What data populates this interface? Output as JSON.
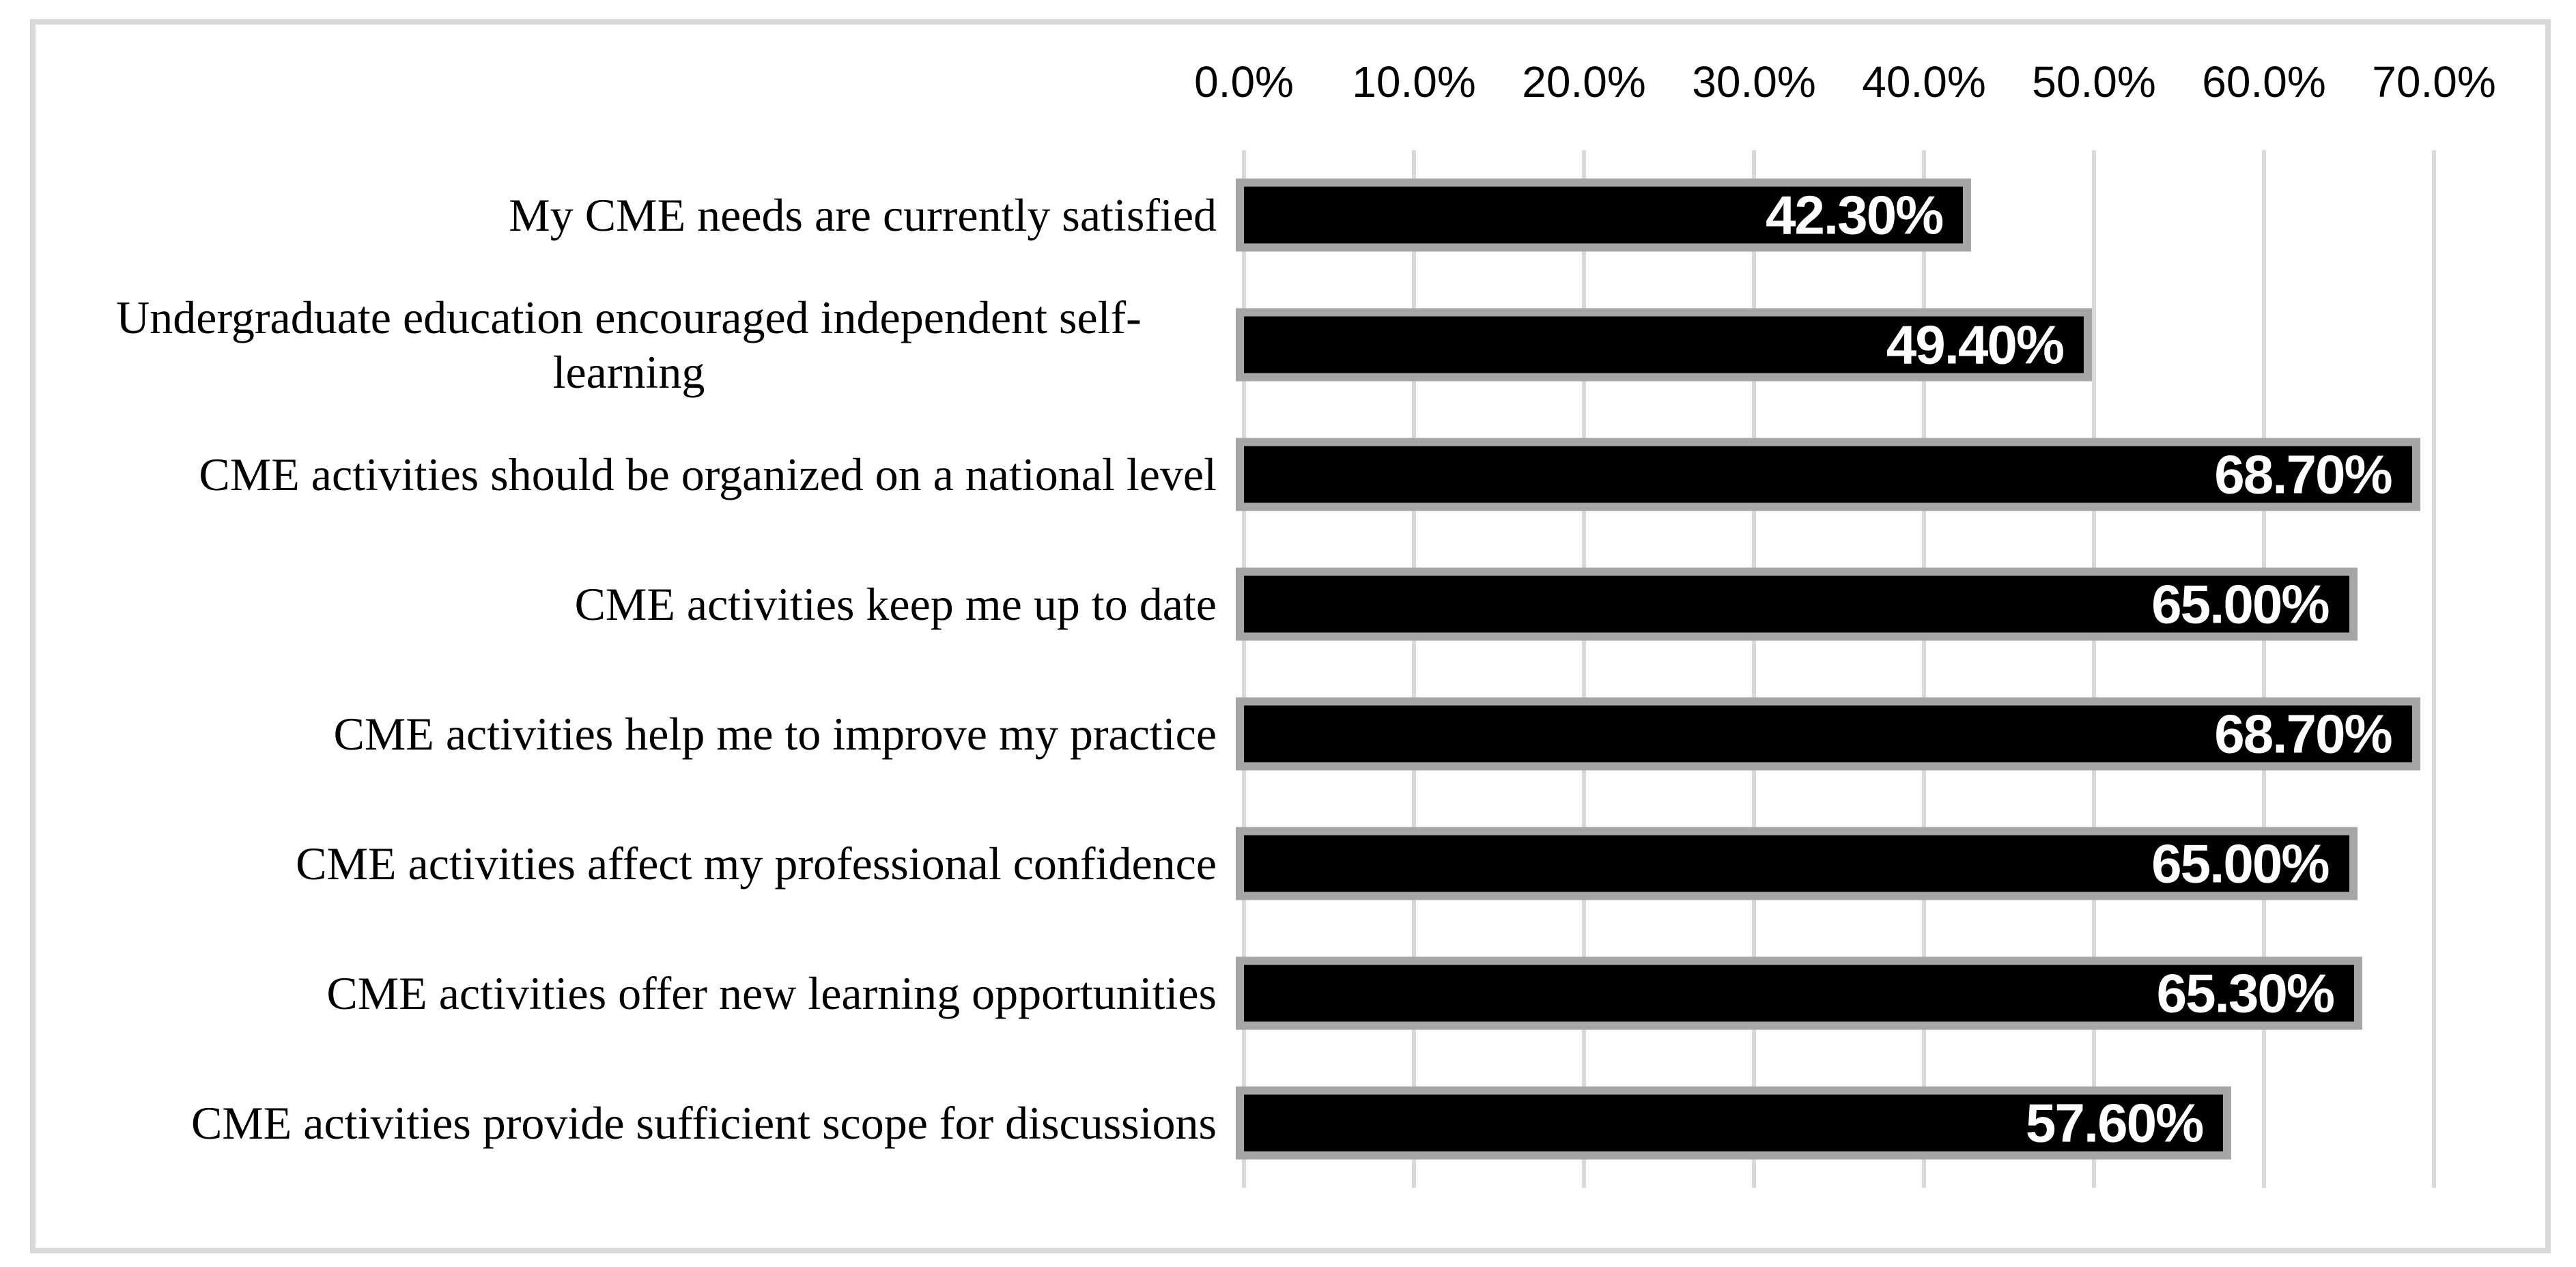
{
  "chart_data": {
    "type": "bar",
    "orientation": "horizontal",
    "title": "",
    "xlabel": "",
    "ylabel": "",
    "xlim": [
      0,
      70
    ],
    "xticks": [
      0,
      10,
      20,
      30,
      40,
      50,
      60,
      70
    ],
    "xtick_labels": [
      "0.0%",
      "10.0%",
      "20.0%",
      "30.0%",
      "40.0%",
      "50.0%",
      "60.0%",
      "70.0%"
    ],
    "axis_position": "top",
    "gridlines": "vertical",
    "legend_position": "none",
    "categories": [
      "My CME needs are currently satisfied",
      "Undergraduate education encouraged independent self-learning",
      "CME activities should be organized on a national level",
      "CME activities keep me up to date",
      "CME activities help me to improve my practice",
      "CME activities affect my professional confidence",
      "CME activities offer new learning opportunities",
      "CME activities provide sufficient scope for discussions"
    ],
    "values": [
      42.3,
      49.4,
      68.7,
      65.0,
      68.7,
      65.0,
      65.3,
      57.6
    ],
    "value_labels": [
      "42.30%",
      "49.40%",
      "68.70%",
      "65.00%",
      "68.70%",
      "65.00%",
      "65.30%",
      "57.60%"
    ],
    "colors": {
      "bar_fill": "#000000",
      "bar_outline": "#a6a6a6",
      "gridline": "#d9d9d9",
      "frame_border": "#d9d9d9",
      "value_label_text": "#ffffff",
      "axis_text": "#000000",
      "category_text": "#000000",
      "background": "#ffffff"
    }
  }
}
